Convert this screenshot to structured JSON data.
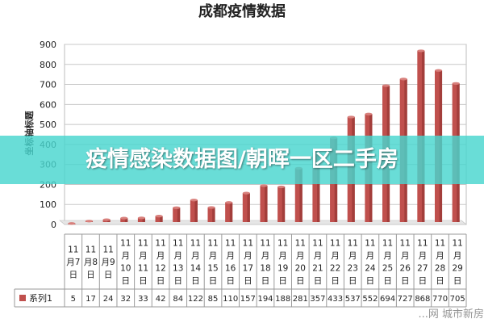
{
  "chart_data": {
    "type": "bar",
    "title": "成都疫情数据",
    "ylabel": "坐标轴标题",
    "xlabel": "",
    "ylim": [
      0,
      900
    ],
    "yticks": [
      0,
      100,
      200,
      300,
      400,
      500,
      600,
      700,
      800,
      900
    ],
    "grid": true,
    "legend": "data-table-left",
    "categories": [
      "11月7日",
      "11月8日",
      "11月9日",
      "11月10日",
      "11月11日",
      "11月12日",
      "11月13日",
      "11月14日",
      "11月15日",
      "11月16日",
      "11月17日",
      "11月18日",
      "11月19日",
      "11月20日",
      "11月21日",
      "11月22日",
      "11月23日",
      "11月24日",
      "11月25日",
      "11月26日",
      "11月27日",
      "11月28日",
      "11月29日"
    ],
    "category_lines": [
      [
        "11",
        "月7",
        "日"
      ],
      [
        "11",
        "月8",
        "日"
      ],
      [
        "11",
        "月9",
        "日"
      ],
      [
        "11",
        "月",
        "10",
        "日"
      ],
      [
        "11",
        "月",
        "11",
        "日"
      ],
      [
        "11",
        "月",
        "12",
        "日"
      ],
      [
        "11",
        "月",
        "13",
        "日"
      ],
      [
        "11",
        "月",
        "14",
        "日"
      ],
      [
        "11",
        "月",
        "15",
        "日"
      ],
      [
        "11",
        "月",
        "16",
        "日"
      ],
      [
        "11",
        "月",
        "17",
        "日"
      ],
      [
        "11",
        "月",
        "18",
        "日"
      ],
      [
        "11",
        "月",
        "19",
        "日"
      ],
      [
        "11",
        "月",
        "20",
        "日"
      ],
      [
        "11",
        "月",
        "21",
        "日"
      ],
      [
        "11",
        "月",
        "22",
        "日"
      ],
      [
        "11",
        "月",
        "23",
        "日"
      ],
      [
        "11",
        "月",
        "24",
        "日"
      ],
      [
        "11",
        "月",
        "25",
        "日"
      ],
      [
        "11",
        "月",
        "26",
        "日"
      ],
      [
        "11",
        "月",
        "27",
        "日"
      ],
      [
        "11",
        "月",
        "28",
        "日"
      ],
      [
        "11",
        "月",
        "29",
        "日"
      ]
    ],
    "series": [
      {
        "name": "系列1",
        "color": "#c0504d",
        "values": [
          5,
          17,
          24,
          32,
          33,
          42,
          84,
          122,
          85,
          110,
          157,
          194,
          188,
          281,
          357,
          433,
          537,
          552,
          694,
          727,
          868,
          770,
          705
        ]
      }
    ]
  },
  "overlay": {
    "banner_text": "疫情感染数据图/朝晖一区二手房",
    "banner_color": "#48d6ce",
    "watermark_text": "...网 城市新房"
  }
}
